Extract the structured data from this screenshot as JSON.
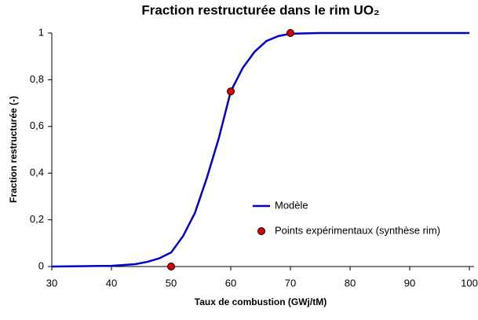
{
  "chart_data": {
    "type": "line",
    "title": "Fraction restructurée dans le rim UO₂",
    "x_label": "Taux de combustion (GWj/tM)",
    "y_label": "Fraction restructurée (-)",
    "xlim": [
      30,
      100
    ],
    "xticks": [
      30,
      40,
      50,
      60,
      70,
      80,
      90,
      100
    ],
    "ylim": [
      0,
      1
    ],
    "yticks": [
      0,
      {
        "value": 0.2,
        "label": "0,2"
      },
      {
        "value": 0.4,
        "label": "0,4"
      },
      {
        "value": 0.6,
        "label": "0,6"
      },
      {
        "value": 0.8,
        "label": "0,8"
      },
      1
    ],
    "grid": false,
    "legend": "lower right",
    "series": [
      {
        "name": "Modèle",
        "type": "line",
        "color": "#0000cc",
        "x": [
          30,
          40,
          44,
          46,
          48,
          50,
          52,
          54,
          56,
          58,
          60,
          62,
          64,
          66,
          68,
          70,
          75,
          80,
          100
        ],
        "values": [
          0,
          0.003,
          0.01,
          0.02,
          0.035,
          0.06,
          0.13,
          0.23,
          0.38,
          0.55,
          0.75,
          0.85,
          0.92,
          0.966,
          0.987,
          0.997,
          1,
          1,
          1
        ]
      },
      {
        "name": "Points expérimentaux (synthèse rim)",
        "type": "scatter",
        "color": "#dd0000",
        "x": [
          50,
          60,
          70
        ],
        "values": [
          0,
          0.75,
          1
        ]
      }
    ]
  }
}
